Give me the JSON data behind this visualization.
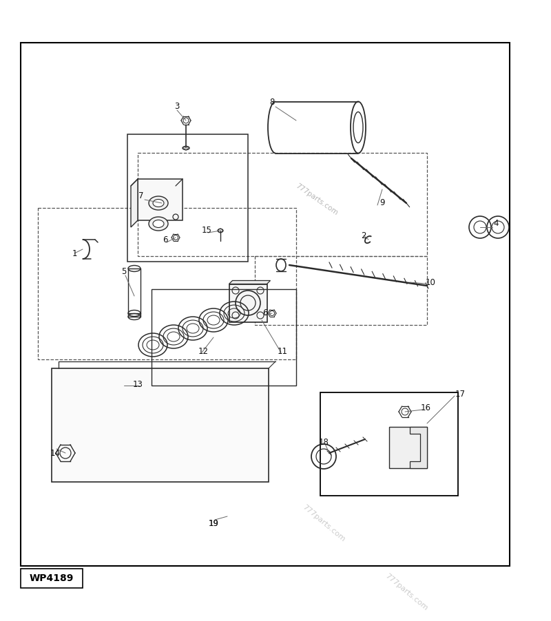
{
  "fig_width": 8.0,
  "fig_height": 9.02,
  "bg_color": "#ffffff",
  "line_color": "#2a2a2a",
  "watermark": "777parts.com",
  "part_id": "WP4189",
  "dpi": 100
}
